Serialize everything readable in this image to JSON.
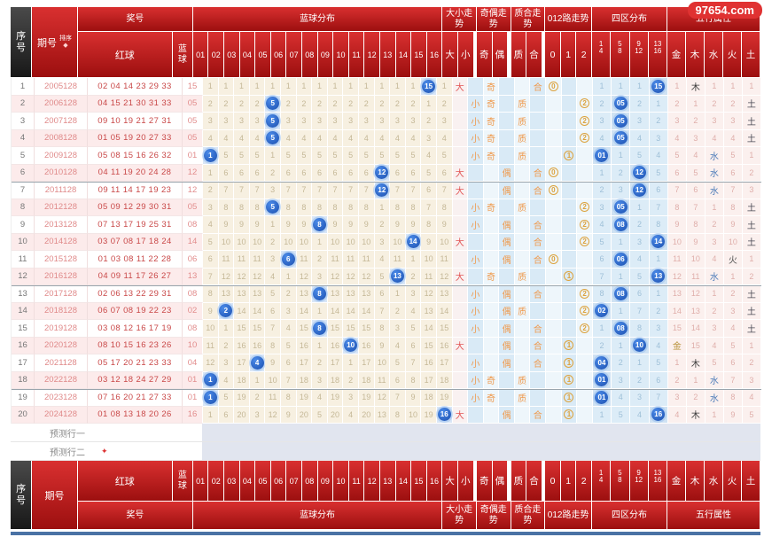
{
  "watermark": "97654.com",
  "colors": {
    "header_red": "#b01212",
    "seq_black": "#2a2a2a",
    "ball_blue": "#1c50b0",
    "grid_cream": "#f7f0e1",
    "trend_blue": "#d9eaf6",
    "element_pink": "#fbf0ee",
    "gold_circle": "#dca23c",
    "bottom_bar": "#4a72a5"
  },
  "header": {
    "seq": "序号",
    "issue": "期号",
    "sort": "排序",
    "sort_icon": "◆",
    "prize": "奖号",
    "red": "红球",
    "blue": "蓝球",
    "blue_dist": "蓝球分布",
    "ball_cols": [
      "01",
      "02",
      "03",
      "04",
      "05",
      "06",
      "07",
      "08",
      "09",
      "10",
      "11",
      "12",
      "13",
      "14",
      "15",
      "16"
    ],
    "size_title": "大小走势",
    "size_cols": [
      "大",
      "小"
    ],
    "parity_title": "奇偶走势",
    "parity_cols": [
      "奇",
      "偶"
    ],
    "prime_title": "质合走势",
    "prime_cols": [
      "质",
      "合"
    ],
    "route_title": "012路走势",
    "route_cols": [
      "0",
      "1",
      "2"
    ],
    "zone_title": "四区分布",
    "zone_cols": [
      "1|4",
      "5|8",
      "9|12",
      "13|16"
    ],
    "element_title": "五行属性",
    "element_cols": [
      "金",
      "木",
      "水",
      "火",
      "土"
    ]
  },
  "predict": [
    {
      "label": "预测行一",
      "icon": ""
    },
    {
      "label": "预测行二",
      "icon": "✦"
    }
  ],
  "chart_data": {
    "type": "table",
    "note_legend": "B=blue-ball hit (circle), H=element hit, plain numbers are miss counts",
    "rows": [
      {
        "n": "1",
        "issue": "2005128",
        "reds": "02 04 14 23 29 33",
        "blue": "15",
        "grid": [
          "1",
          "1",
          "1",
          "1",
          "1",
          "1",
          "1",
          "1",
          "1",
          "1",
          "1",
          "1",
          "1",
          "1",
          "B15",
          "1"
        ],
        "size": "大",
        "parity": "奇",
        "prime": "合",
        "route": "0",
        "zones": [
          "1",
          "1",
          "1",
          "B15"
        ],
        "elems": [
          "1",
          "H木",
          "1",
          "1",
          "1"
        ]
      },
      {
        "n": "2",
        "issue": "2006128",
        "reds": "04 15 21 30 31 33",
        "blue": "05",
        "grid": [
          "2",
          "2",
          "2",
          "2",
          "B5",
          "2",
          "2",
          "2",
          "2",
          "2",
          "2",
          "2",
          "2",
          "2",
          "1",
          "2"
        ],
        "size": "小",
        "parity": "奇",
        "prime": "质",
        "route": "2",
        "zones": [
          "2",
          "B05",
          "2",
          "1"
        ],
        "elems": [
          "2",
          "1",
          "2",
          "2",
          "H土"
        ]
      },
      {
        "n": "3",
        "issue": "2007128",
        "reds": "09 10 19 21 27 31",
        "blue": "05",
        "grid": [
          "3",
          "3",
          "3",
          "3",
          "B5",
          "3",
          "3",
          "3",
          "3",
          "3",
          "3",
          "3",
          "3",
          "3",
          "2",
          "3"
        ],
        "size": "小",
        "parity": "奇",
        "prime": "质",
        "route": "2",
        "zones": [
          "3",
          "B05",
          "3",
          "2"
        ],
        "elems": [
          "3",
          "2",
          "3",
          "3",
          "H土"
        ]
      },
      {
        "n": "4",
        "issue": "2008128",
        "reds": "01 05 19 20 27 33",
        "blue": "05",
        "grid": [
          "4",
          "4",
          "4",
          "4",
          "B5",
          "4",
          "4",
          "4",
          "4",
          "4",
          "4",
          "4",
          "4",
          "4",
          "3",
          "4"
        ],
        "size": "小",
        "parity": "奇",
        "prime": "质",
        "route": "2",
        "zones": [
          "4",
          "B05",
          "4",
          "3"
        ],
        "elems": [
          "4",
          "3",
          "4",
          "4",
          "H土"
        ]
      },
      {
        "n": "5",
        "issue": "2009128",
        "reds": "05 08 15 16 26 32",
        "blue": "01",
        "grid": [
          "B1",
          "5",
          "5",
          "5",
          "1",
          "5",
          "5",
          "5",
          "5",
          "5",
          "5",
          "5",
          "5",
          "5",
          "4",
          "5"
        ],
        "size": "小",
        "parity": "奇",
        "prime": "质",
        "route": "1",
        "zones": [
          "B01",
          "1",
          "5",
          "4"
        ],
        "elems": [
          "5",
          "4",
          "H水",
          "5",
          "1"
        ]
      },
      {
        "n": "6",
        "issue": "2010128",
        "reds": "04 11 19 20 24 28",
        "blue": "12",
        "grid": [
          "1",
          "6",
          "6",
          "6",
          "2",
          "6",
          "6",
          "6",
          "6",
          "6",
          "6",
          "B12",
          "6",
          "6",
          "5",
          "6"
        ],
        "size": "大",
        "parity": "偶",
        "prime": "合",
        "route": "0",
        "zones": [
          "1",
          "2",
          "B12",
          "5"
        ],
        "elems": [
          "6",
          "5",
          "H水",
          "6",
          "2"
        ]
      },
      {
        "n": "7",
        "issue": "2011128",
        "reds": "09 11 14 17 19 23",
        "blue": "12",
        "grid": [
          "2",
          "7",
          "7",
          "7",
          "3",
          "7",
          "7",
          "7",
          "7",
          "7",
          "7",
          "B12",
          "7",
          "7",
          "6",
          "7"
        ],
        "size": "大",
        "parity": "偶",
        "prime": "合",
        "route": "0",
        "zones": [
          "2",
          "3",
          "B12",
          "6"
        ],
        "elems": [
          "7",
          "6",
          "H水",
          "7",
          "3"
        ]
      },
      {
        "n": "8",
        "issue": "2012128",
        "reds": "05 09 12 29 30 31",
        "blue": "05",
        "grid": [
          "3",
          "8",
          "8",
          "8",
          "B5",
          "8",
          "8",
          "8",
          "8",
          "8",
          "8",
          "1",
          "8",
          "8",
          "7",
          "8"
        ],
        "size": "小",
        "parity": "奇",
        "prime": "质",
        "route": "2",
        "zones": [
          "3",
          "B05",
          "1",
          "7"
        ],
        "elems": [
          "8",
          "7",
          "1",
          "8",
          "H土"
        ]
      },
      {
        "n": "9",
        "issue": "2013128",
        "reds": "07 13 17 19 25 31",
        "blue": "08",
        "grid": [
          "4",
          "9",
          "9",
          "9",
          "1",
          "9",
          "9",
          "B8",
          "9",
          "9",
          "9",
          "2",
          "9",
          "9",
          "8",
          "9"
        ],
        "size": "小",
        "parity": "偶",
        "prime": "合",
        "route": "2",
        "zones": [
          "4",
          "B08",
          "2",
          "8"
        ],
        "elems": [
          "9",
          "8",
          "2",
          "9",
          "H土"
        ]
      },
      {
        "n": "10",
        "issue": "2014128",
        "reds": "03 07 08 17 18 24",
        "blue": "14",
        "grid": [
          "5",
          "10",
          "10",
          "10",
          "2",
          "10",
          "10",
          "1",
          "10",
          "10",
          "10",
          "3",
          "10",
          "B14",
          "9",
          "10"
        ],
        "size": "大",
        "parity": "偶",
        "prime": "合",
        "route": "2",
        "zones": [
          "5",
          "1",
          "3",
          "B14"
        ],
        "elems": [
          "10",
          "9",
          "3",
          "10",
          "H土"
        ]
      },
      {
        "n": "11",
        "issue": "2015128",
        "reds": "01 03 08 11 22 28",
        "blue": "06",
        "grid": [
          "6",
          "11",
          "11",
          "11",
          "3",
          "B6",
          "11",
          "2",
          "11",
          "11",
          "11",
          "4",
          "11",
          "1",
          "10",
          "11"
        ],
        "size": "小",
        "parity": "偶",
        "prime": "合",
        "route": "0",
        "zones": [
          "6",
          "B06",
          "4",
          "1"
        ],
        "elems": [
          "11",
          "10",
          "4",
          "H火",
          "1"
        ]
      },
      {
        "n": "12",
        "issue": "2016128",
        "reds": "04 09 11 17 26 27",
        "blue": "13",
        "grid": [
          "7",
          "12",
          "12",
          "12",
          "4",
          "1",
          "12",
          "3",
          "12",
          "12",
          "12",
          "5",
          "B13",
          "2",
          "11",
          "12"
        ],
        "size": "大",
        "parity": "奇",
        "prime": "质",
        "route": "1",
        "zones": [
          "7",
          "1",
          "5",
          "B13"
        ],
        "elems": [
          "12",
          "11",
          "H水",
          "1",
          "2"
        ]
      },
      {
        "n": "13",
        "issue": "2017128",
        "reds": "02 06 13 22 29 31",
        "blue": "08",
        "grid": [
          "8",
          "13",
          "13",
          "13",
          "5",
          "2",
          "13",
          "B8",
          "13",
          "13",
          "13",
          "6",
          "1",
          "3",
          "12",
          "13"
        ],
        "size": "小",
        "parity": "偶",
        "prime": "合",
        "route": "2",
        "zones": [
          "8",
          "B08",
          "6",
          "1"
        ],
        "elems": [
          "13",
          "12",
          "1",
          "2",
          "H土"
        ]
      },
      {
        "n": "14",
        "issue": "2018128",
        "reds": "06 07 08 19 22 23",
        "blue": "02",
        "grid": [
          "9",
          "B2",
          "14",
          "14",
          "6",
          "3",
          "14",
          "1",
          "14",
          "14",
          "14",
          "7",
          "2",
          "4",
          "13",
          "14"
        ],
        "size": "小",
        "parity": "偶",
        "prime": "质",
        "route": "2",
        "zones": [
          "B02",
          "1",
          "7",
          "2"
        ],
        "elems": [
          "14",
          "13",
          "2",
          "3",
          "H土"
        ]
      },
      {
        "n": "15",
        "issue": "2019128",
        "reds": "03 08 12 16 17 19",
        "blue": "08",
        "grid": [
          "10",
          "1",
          "15",
          "15",
          "7",
          "4",
          "15",
          "B8",
          "15",
          "15",
          "15",
          "8",
          "3",
          "5",
          "14",
          "15"
        ],
        "size": "小",
        "parity": "偶",
        "prime": "合",
        "route": "2",
        "zones": [
          "1",
          "B08",
          "8",
          "3"
        ],
        "elems": [
          "15",
          "14",
          "3",
          "4",
          "H土"
        ]
      },
      {
        "n": "16",
        "issue": "2020128",
        "reds": "08 10 15 16 23 26",
        "blue": "10",
        "grid": [
          "11",
          "2",
          "16",
          "16",
          "8",
          "5",
          "16",
          "1",
          "16",
          "B10",
          "16",
          "9",
          "4",
          "6",
          "15",
          "16"
        ],
        "size": "大",
        "parity": "偶",
        "prime": "合",
        "route": "1",
        "zones": [
          "2",
          "1",
          "B10",
          "4"
        ],
        "elems": [
          "H金",
          "15",
          "4",
          "5",
          "1"
        ]
      },
      {
        "n": "17",
        "issue": "2021128",
        "reds": "05 17 20 21 23 33",
        "blue": "04",
        "grid": [
          "12",
          "3",
          "17",
          "B4",
          "9",
          "6",
          "17",
          "2",
          "17",
          "1",
          "17",
          "10",
          "5",
          "7",
          "16",
          "17"
        ],
        "size": "小",
        "parity": "偶",
        "prime": "合",
        "route": "1",
        "zones": [
          "B04",
          "2",
          "1",
          "5"
        ],
        "elems": [
          "1",
          "H木",
          "5",
          "6",
          "2"
        ]
      },
      {
        "n": "18",
        "issue": "2022128",
        "reds": "03 12 18 24 27 29",
        "blue": "01",
        "grid": [
          "B1",
          "4",
          "18",
          "1",
          "10",
          "7",
          "18",
          "3",
          "18",
          "2",
          "18",
          "11",
          "6",
          "8",
          "17",
          "18"
        ],
        "size": "小",
        "parity": "奇",
        "prime": "质",
        "route": "1",
        "zones": [
          "B01",
          "3",
          "2",
          "6"
        ],
        "elems": [
          "2",
          "1",
          "H水",
          "7",
          "3"
        ]
      },
      {
        "n": "19",
        "issue": "2023128",
        "reds": "07 16 20 21 27 33",
        "blue": "01",
        "grid": [
          "B1",
          "5",
          "19",
          "2",
          "11",
          "8",
          "19",
          "4",
          "19",
          "3",
          "19",
          "12",
          "7",
          "9",
          "18",
          "19"
        ],
        "size": "小",
        "parity": "奇",
        "prime": "质",
        "route": "1",
        "zones": [
          "B01",
          "4",
          "3",
          "7"
        ],
        "elems": [
          "3",
          "2",
          "H水",
          "8",
          "4"
        ]
      },
      {
        "n": "20",
        "issue": "2024128",
        "reds": "01 08 13 18 20 26",
        "blue": "16",
        "grid": [
          "1",
          "6",
          "20",
          "3",
          "12",
          "9",
          "20",
          "5",
          "20",
          "4",
          "20",
          "13",
          "8",
          "10",
          "19",
          "B16"
        ],
        "size": "大",
        "parity": "偶",
        "prime": "合",
        "route": "1",
        "zones": [
          "1",
          "5",
          "4",
          "B16"
        ],
        "elems": [
          "4",
          "H木",
          "1",
          "9",
          "5"
        ]
      }
    ]
  }
}
